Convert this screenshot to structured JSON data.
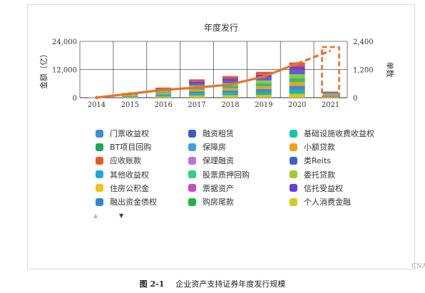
{
  "chart_data": {
    "type": "bar",
    "title": "年度发行",
    "ylabel": "金额（亿）",
    "y2label": "单数",
    "categories": [
      "2014",
      "2015",
      "2016",
      "2017",
      "2018",
      "2019",
      "2020",
      "2021"
    ],
    "ylim": [
      0,
      24000
    ],
    "yticks": [
      "0",
      "12,000",
      "24,000"
    ],
    "y2lim": [
      0,
      2400
    ],
    "y2ticks": [
      "0",
      "1,200",
      "2,400"
    ],
    "stacked_totals": [
      50,
      2000,
      4300,
      7800,
      9200,
      11000,
      15000,
      2600
    ],
    "stack_colors": [
      "#d4c21a",
      "#1fb3a5",
      "#3c89d0",
      "#e5a51c",
      "#2fbf71",
      "#93c83e",
      "#5b5fd6",
      "#7b3fbf",
      "#e0583a"
    ],
    "count_series": {
      "name": "单数",
      "values": [
        3,
        170,
        330,
        430,
        560,
        900,
        1450
      ],
      "forecast_value": 2000,
      "color": "#e8722c"
    },
    "highlight_category": "2021",
    "legend": [
      {
        "label": "门票收益权",
        "color": "#3a8fd8"
      },
      {
        "label": "融资租赁",
        "color": "#3b5bd1"
      },
      {
        "label": "基础设施收费收益权",
        "color": "#19c4b0"
      },
      {
        "label": "BT项目回购",
        "color": "#22a65a"
      },
      {
        "label": "保障房",
        "color": "#3aa0e0"
      },
      {
        "label": "小额贷款",
        "color": "#f0a020"
      },
      {
        "label": "应收账款",
        "color": "#e55a1c"
      },
      {
        "label": "保理融资",
        "color": "#c070e0"
      },
      {
        "label": "类Reits",
        "color": "#4060d0"
      },
      {
        "label": "其他收益权",
        "color": "#1aa9d6"
      },
      {
        "label": "股票质押回购",
        "color": "#2ccf88"
      },
      {
        "label": "委托贷款",
        "color": "#a0cc30"
      },
      {
        "label": "住房公积金",
        "color": "#f2c21a"
      },
      {
        "label": "票据资产",
        "color": "#c050c0"
      },
      {
        "label": "信托受益权",
        "color": "#6a3fd8"
      },
      {
        "label": "融出资金债权",
        "color": "#2f86d0"
      },
      {
        "label": "购房尾款",
        "color": "#22b24a"
      },
      {
        "label": "个人消费金融",
        "color": "#dcc820"
      }
    ]
  },
  "pager": {
    "up_icon": "▲",
    "down_icon": "▼"
  },
  "watermark": "CNABS",
  "caption": {
    "number": "图 2-1",
    "text": "企业资产支持证券年度发行规模"
  }
}
